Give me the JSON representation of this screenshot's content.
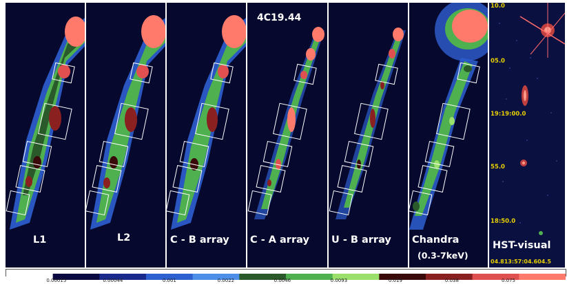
{
  "source_name": "4C19.44",
  "panels": [
    {
      "label": "L1",
      "sublabel": ""
    },
    {
      "label": "L2",
      "sublabel": ""
    },
    {
      "label": "C - B array",
      "sublabel": ""
    },
    {
      "label": "C - A array",
      "sublabel": ""
    },
    {
      "label": "U - B array",
      "sublabel": ""
    },
    {
      "label": "Chandra",
      "sublabel": "(0.3-7keV)"
    },
    {
      "label": "HST-visual",
      "sublabel": ""
    }
  ],
  "hst_dec_ticks": [
    "10.0",
    "05.0",
    "19:19:00.0",
    "55.0",
    "18:50.0"
  ],
  "hst_ra_ticks": "04.813:57:04.604.5",
  "colorbar": {
    "ticks": [
      "0.00015",
      "0.00044",
      "0.001",
      "0.0022",
      "0.0046",
      "0.0093",
      "0.019",
      "0.038",
      "0.075"
    ],
    "colors": [
      "#ffffff",
      "#0a0a40",
      "#1a2a8c",
      "#2e5fd0",
      "#4d8fe8",
      "#2a5a2a",
      "#4fb04f",
      "#9be06a",
      "#3a0a0a",
      "#8a2020",
      "#e05050",
      "#ff7a6a"
    ]
  }
}
